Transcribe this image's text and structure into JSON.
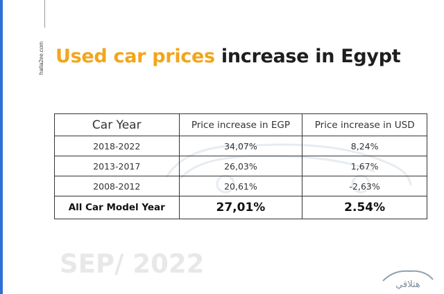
{
  "site": "hatla2ee.com",
  "title": {
    "highlight": "Used car prices",
    "rest": "increase in Egypt"
  },
  "table": {
    "headers": [
      "Car Year",
      "Price increase in EGP",
      "Price increase in USD"
    ],
    "rows": [
      [
        "2018-2022",
        "34,07%",
        "8,24%"
      ],
      [
        "2013-2017",
        "26,03%",
        "1,67%"
      ],
      [
        "2008-2012",
        "20,61%",
        "-2,63%"
      ]
    ],
    "total": [
      "All Car Model Year",
      "27,01%",
      "2.54%"
    ]
  },
  "date": "SEP/ 2022",
  "logo_text": "هتلاقي",
  "colors": {
    "accent": "#f2a51c",
    "left_bar": "#2f6fd6",
    "text": "#1e1e1e",
    "faint": "#e8e8e8"
  }
}
